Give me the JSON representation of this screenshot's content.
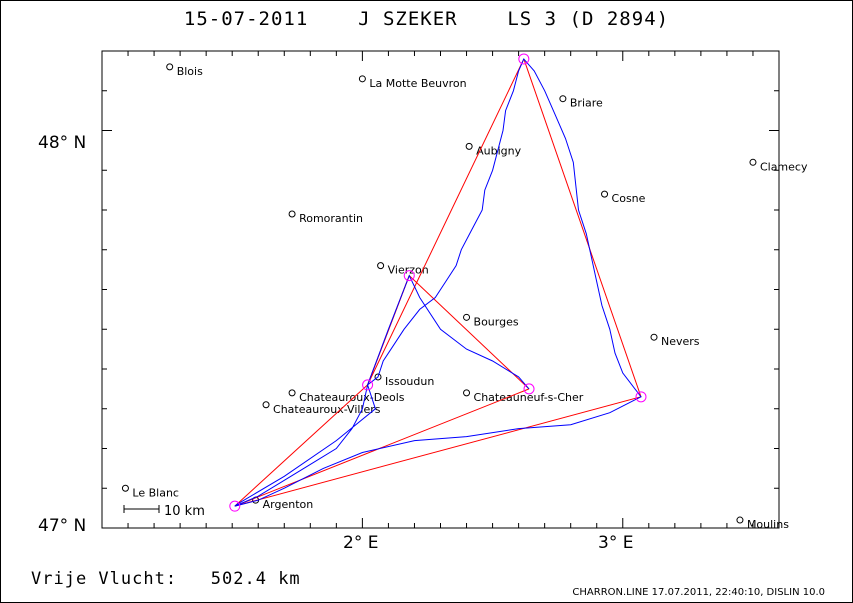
{
  "header": {
    "date": "15-07-2011",
    "pilot": "J SZEKER",
    "glider": "LS 3 (D 2894)"
  },
  "axes": {
    "lat_labels": [
      "48° N",
      "47° N"
    ],
    "lon_labels": [
      "2° E",
      "3° E"
    ],
    "lat_range": [
      47.0,
      48.2
    ],
    "lon_range": [
      1.0,
      3.6
    ]
  },
  "scale_bar": {
    "label": "10 km"
  },
  "cities": [
    {
      "name": "Blois",
      "lon": 1.26,
      "lat": 48.16
    },
    {
      "name": "La Motte Beuvron",
      "lon": 2.0,
      "lat": 48.13
    },
    {
      "name": "Briare",
      "lon": 2.77,
      "lat": 48.08
    },
    {
      "name": "Aubigny",
      "lon": 2.41,
      "lat": 47.96
    },
    {
      "name": "Clamecy",
      "lon": 3.5,
      "lat": 47.92
    },
    {
      "name": "Cosne",
      "lon": 2.93,
      "lat": 47.84
    },
    {
      "name": "Romorantin",
      "lon": 1.73,
      "lat": 47.79
    },
    {
      "name": "Vierzon",
      "lon": 2.07,
      "lat": 47.66
    },
    {
      "name": "Bourges",
      "lon": 2.4,
      "lat": 47.53
    },
    {
      "name": "Nevers",
      "lon": 3.12,
      "lat": 47.48
    },
    {
      "name": "Issoudun",
      "lon": 2.06,
      "lat": 47.38
    },
    {
      "name": "Chateauroux-Deols",
      "lon": 1.73,
      "lat": 47.34
    },
    {
      "name": "Chateauneuf-s-Cher",
      "lon": 2.4,
      "lat": 47.34
    },
    {
      "name": "Chateauroux-Villers",
      "lon": 1.63,
      "lat": 47.31
    },
    {
      "name": "Le Blanc",
      "lon": 1.09,
      "lat": 47.1
    },
    {
      "name": "Argenton",
      "lon": 1.59,
      "lat": 47.07
    },
    {
      "name": "Moulins",
      "lon": 3.45,
      "lat": 47.02
    }
  ],
  "turnpoints": [
    {
      "lon": 1.51,
      "lat": 47.055
    },
    {
      "lon": 2.02,
      "lat": 47.36
    },
    {
      "lon": 2.18,
      "lat": 47.635
    },
    {
      "lon": 2.64,
      "lat": 47.35
    },
    {
      "lon": 2.62,
      "lat": 48.18
    },
    {
      "lon": 3.07,
      "lat": 47.33
    }
  ],
  "task_order": [
    0,
    1,
    2,
    1,
    4,
    5,
    0
  ],
  "secondary_legs": [
    [
      2,
      3
    ],
    [
      3,
      0
    ]
  ],
  "track": [
    [
      1.51,
      47.055
    ],
    [
      1.6,
      47.08
    ],
    [
      1.7,
      47.12
    ],
    [
      1.8,
      47.16
    ],
    [
      1.9,
      47.2
    ],
    [
      1.96,
      47.25
    ],
    [
      2.0,
      47.3
    ],
    [
      2.02,
      47.36
    ],
    [
      2.06,
      47.38
    ],
    [
      2.08,
      47.42
    ],
    [
      2.12,
      47.46
    ],
    [
      2.16,
      47.5
    ],
    [
      2.22,
      47.55
    ],
    [
      2.28,
      47.58
    ],
    [
      2.32,
      47.62
    ],
    [
      2.36,
      47.66
    ],
    [
      2.38,
      47.7
    ],
    [
      2.42,
      47.75
    ],
    [
      2.46,
      47.8
    ],
    [
      2.47,
      47.85
    ],
    [
      2.5,
      47.9
    ],
    [
      2.52,
      47.95
    ],
    [
      2.54,
      48.0
    ],
    [
      2.55,
      48.05
    ],
    [
      2.58,
      48.1
    ],
    [
      2.6,
      48.15
    ],
    [
      2.62,
      48.18
    ],
    [
      2.66,
      48.15
    ],
    [
      2.7,
      48.1
    ],
    [
      2.74,
      48.04
    ],
    [
      2.78,
      47.98
    ],
    [
      2.81,
      47.92
    ],
    [
      2.82,
      47.86
    ],
    [
      2.83,
      47.8
    ],
    [
      2.86,
      47.74
    ],
    [
      2.88,
      47.68
    ],
    [
      2.9,
      47.62
    ],
    [
      2.92,
      47.56
    ],
    [
      2.95,
      47.5
    ],
    [
      2.97,
      47.44
    ],
    [
      3.0,
      47.39
    ],
    [
      3.07,
      47.33
    ],
    [
      2.95,
      47.29
    ],
    [
      2.8,
      47.26
    ],
    [
      2.6,
      47.25
    ],
    [
      2.4,
      47.23
    ],
    [
      2.2,
      47.22
    ],
    [
      2.0,
      47.19
    ],
    [
      1.85,
      47.15
    ],
    [
      1.7,
      47.1
    ],
    [
      1.6,
      47.07
    ],
    [
      1.51,
      47.055
    ],
    [
      1.52,
      47.06
    ],
    [
      1.7,
      47.13
    ],
    [
      1.9,
      47.22
    ],
    [
      2.05,
      47.3
    ],
    [
      2.02,
      47.36
    ],
    [
      2.1,
      47.5
    ],
    [
      2.18,
      47.635
    ],
    [
      2.22,
      47.58
    ],
    [
      2.3,
      47.5
    ],
    [
      2.4,
      47.45
    ],
    [
      2.5,
      47.42
    ],
    [
      2.6,
      47.38
    ],
    [
      2.64,
      47.35
    ]
  ],
  "footer": {
    "distance_label": "Vrije Vlucht:",
    "distance_value": "502.4 km",
    "credit": "CHARRON.LINE 17.07.2011, 22:40:10, DISLIN 10.0"
  },
  "colors": {
    "track": "#0000ff",
    "task": "#ff0000",
    "turnpoint": "#ff00ff",
    "frame": "#000000"
  }
}
